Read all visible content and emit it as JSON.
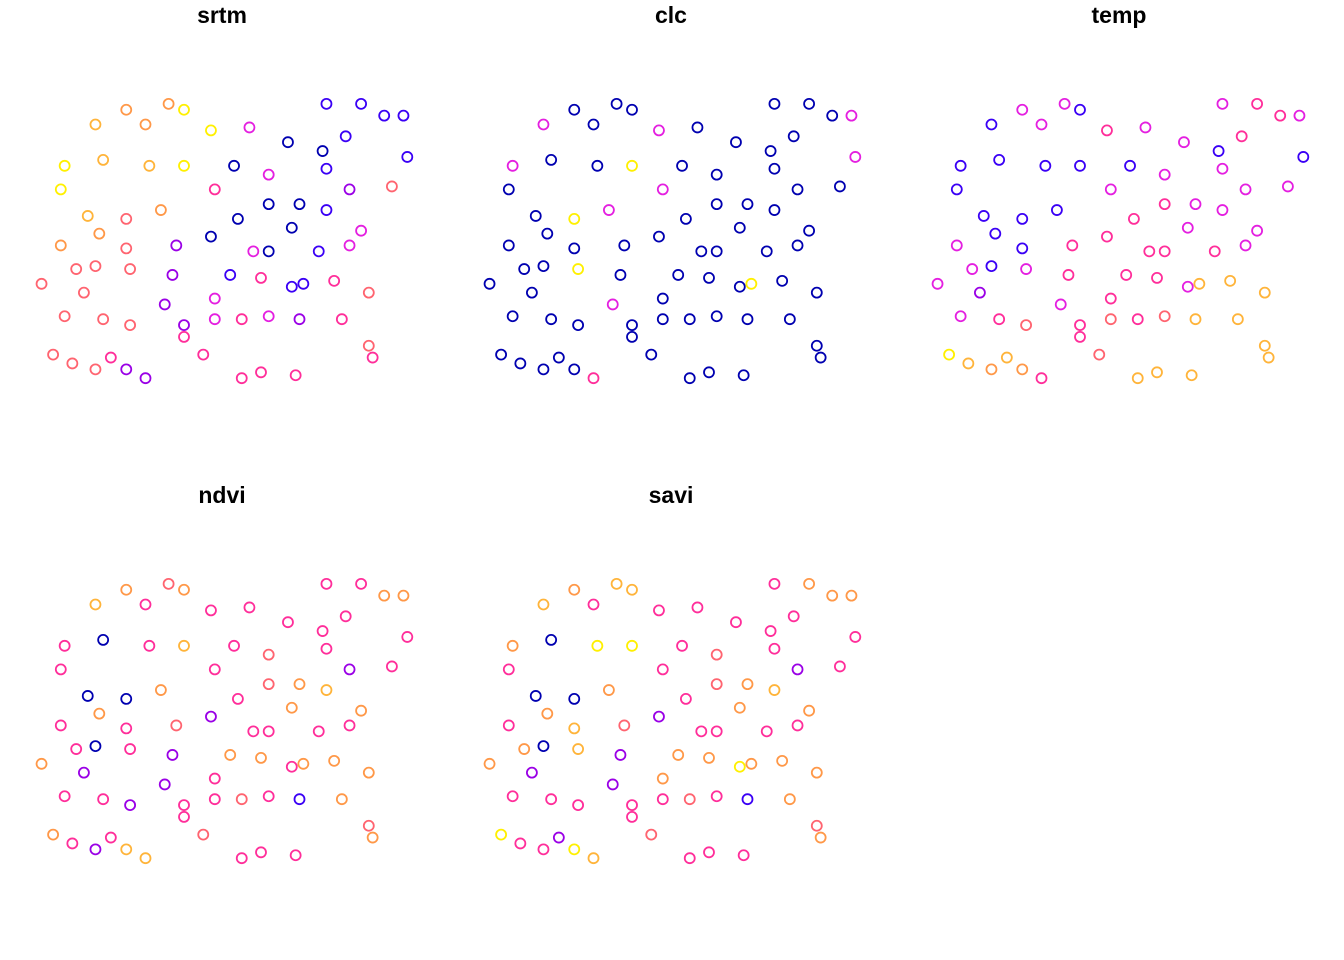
{
  "chart_data": [
    {
      "type": "scatter",
      "title": "srtm",
      "xlim": [
        0,
        100
      ],
      "ylim": [
        0,
        100
      ],
      "x": [
        17,
        25,
        36,
        47,
        57,
        67,
        77,
        86,
        97,
        98,
        9,
        19,
        31,
        40,
        53,
        62,
        76,
        83,
        94,
        8,
        15,
        25,
        34,
        48,
        54,
        62,
        70,
        77,
        86,
        8,
        18,
        25,
        38,
        47,
        58,
        68,
        75,
        83,
        3,
        12,
        17,
        26,
        37,
        48,
        52,
        60,
        68,
        71,
        79,
        88,
        9,
        14,
        19,
        26,
        35,
        48,
        55,
        62,
        70,
        81,
        40,
        6,
        11,
        17,
        21,
        25,
        30,
        40,
        45,
        55,
        60,
        69,
        88,
        89,
        30,
        40,
        82,
        92,
        77,
        62
      ],
      "y": [
        90,
        95,
        97,
        88,
        89,
        84,
        97,
        97,
        93,
        79,
        76,
        78,
        76,
        76,
        76,
        73,
        81,
        68,
        69,
        68,
        59,
        58,
        61,
        68,
        58,
        63,
        63,
        61,
        54,
        49,
        53,
        48,
        49,
        52,
        47,
        55,
        47,
        49,
        36,
        41,
        42,
        41,
        39,
        31,
        39,
        38,
        35,
        36,
        37,
        33,
        25,
        33,
        24,
        22,
        29,
        24,
        24,
        25,
        24,
        24,
        22,
        12,
        9,
        7,
        11,
        7,
        4,
        18,
        12,
        4,
        6,
        5,
        15,
        11,
        90,
        95,
        86,
        93,
        75,
        47
      ],
      "colors": [
        "#FFB43A",
        "#FF9848",
        "#FF9848",
        "#FFF000",
        "#E41FE0",
        "#0000B0",
        "#3A00F5",
        "#3A00F5",
        "#3A00F5",
        "#3A00F5",
        "#FFF000",
        "#FFB43A",
        "#FFB43A",
        "#FFF000",
        "#0000B0",
        "#E41FE0",
        "#0000B0",
        "#9A00E6",
        "#FF6470",
        "#FFF000",
        "#FFB43A",
        "#FF6470",
        "#FF9848",
        "#FF2E9A",
        "#0000B0",
        "#0000B0",
        "#0000B0",
        "#3A00F5",
        "#E41FE0",
        "#FF9848",
        "#FF9848",
        "#FF6470",
        "#9A00E6",
        "#0000B0",
        "#E41FE0",
        "#0000B0",
        "#3A00F5",
        "#E41FE0",
        "#FF6470",
        "#FF6470",
        "#FF6470",
        "#FF6470",
        "#9A00E6",
        "#E41FE0",
        "#3A00F5",
        "#FF2E9A",
        "#3A00F5",
        "#3A00F5",
        "#FF2E9A",
        "#FF6470",
        "#FF6470",
        "#FF6470",
        "#FF6470",
        "#FF6470",
        "#9A00E6",
        "#E41FE0",
        "#FF2E9A",
        "#E41FE0",
        "#9A00E6",
        "#FF2E9A",
        "#9A00E6",
        "#FF6470",
        "#FF6470",
        "#FF6470",
        "#FF2E9A",
        "#9A00E6",
        "#9A00E6",
        "#FF2E9A",
        "#FF2E9A",
        "#FF2E9A",
        "#FF2E9A",
        "#FF2E9A",
        "#FF6470",
        "#FF2E9A",
        "#FF9848",
        "#FFF000",
        "#3A00F5",
        "#3A00F5",
        "#3A00F5",
        "#0000B0"
      ]
    },
    {
      "type": "scatter",
      "title": "clc",
      "xlim": [
        0,
        100
      ],
      "ylim": [
        0,
        100
      ],
      "x": [
        17,
        25,
        36,
        47,
        57,
        67,
        77,
        86,
        97,
        98,
        9,
        19,
        31,
        40,
        53,
        62,
        76,
        83,
        94,
        8,
        15,
        25,
        34,
        48,
        54,
        62,
        70,
        77,
        86,
        8,
        18,
        25,
        38,
        47,
        58,
        68,
        75,
        83,
        3,
        12,
        17,
        26,
        37,
        48,
        52,
        60,
        68,
        71,
        79,
        88,
        9,
        14,
        19,
        26,
        35,
        48,
        55,
        62,
        70,
        81,
        40,
        6,
        11,
        17,
        21,
        25,
        30,
        40,
        45,
        55,
        60,
        69,
        88,
        89,
        30,
        40,
        82,
        92,
        77,
        62
      ],
      "y": [
        90,
        95,
        97,
        88,
        89,
        84,
        97,
        97,
        93,
        79,
        76,
        78,
        76,
        76,
        76,
        73,
        81,
        68,
        69,
        68,
        59,
        58,
        61,
        68,
        58,
        63,
        63,
        61,
        54,
        49,
        53,
        48,
        49,
        52,
        47,
        55,
        47,
        49,
        36,
        41,
        42,
        41,
        39,
        31,
        39,
        38,
        35,
        36,
        37,
        33,
        25,
        33,
        24,
        22,
        29,
        24,
        24,
        25,
        24,
        24,
        22,
        12,
        9,
        7,
        11,
        7,
        4,
        18,
        12,
        4,
        6,
        5,
        15,
        11,
        90,
        95,
        86,
        93,
        75,
        47
      ],
      "colors": [
        "#E41FE0",
        "#0000B0",
        "#0000B0",
        "#E41FE0",
        "#0000B0",
        "#0000B0",
        "#0000B0",
        "#0000B0",
        "#E41FE0",
        "#E41FE0",
        "#E41FE0",
        "#0000B0",
        "#0000B0",
        "#FFF000",
        "#0000B0",
        "#0000B0",
        "#0000B0",
        "#0000B0",
        "#0000B0",
        "#0000B0",
        "#0000B0",
        "#FFF000",
        "#E41FE0",
        "#E41FE0",
        "#0000B0",
        "#0000B0",
        "#0000B0",
        "#0000B0",
        "#0000B0",
        "#0000B0",
        "#0000B0",
        "#0000B0",
        "#0000B0",
        "#0000B0",
        "#0000B0",
        "#0000B0",
        "#0000B0",
        "#0000B0",
        "#0000B0",
        "#0000B0",
        "#0000B0",
        "#FFF000",
        "#0000B0",
        "#0000B0",
        "#0000B0",
        "#0000B0",
        "#0000B0",
        "#FFF000",
        "#0000B0",
        "#0000B0",
        "#0000B0",
        "#0000B0",
        "#0000B0",
        "#0000B0",
        "#E41FE0",
        "#0000B0",
        "#0000B0",
        "#0000B0",
        "#0000B0",
        "#0000B0",
        "#0000B0",
        "#0000B0",
        "#0000B0",
        "#0000B0",
        "#0000B0",
        "#0000B0",
        "#FF2E9A",
        "#0000B0",
        "#0000B0",
        "#0000B0",
        "#0000B0",
        "#0000B0",
        "#0000B0",
        "#0000B0",
        "#0000B0",
        "#0000B0",
        "#0000B0",
        "#0000B0",
        "#0000B0",
        "#0000B0"
      ]
    },
    {
      "type": "scatter",
      "title": "temp",
      "xlim": [
        0,
        100
      ],
      "ylim": [
        0,
        100
      ],
      "x": [
        17,
        25,
        36,
        47,
        57,
        67,
        77,
        86,
        97,
        98,
        9,
        19,
        31,
        40,
        53,
        62,
        76,
        83,
        94,
        8,
        15,
        25,
        34,
        48,
        54,
        62,
        70,
        77,
        86,
        8,
        18,
        25,
        38,
        47,
        58,
        68,
        75,
        83,
        3,
        12,
        17,
        26,
        37,
        48,
        52,
        60,
        68,
        71,
        79,
        88,
        9,
        14,
        19,
        26,
        35,
        48,
        55,
        62,
        70,
        81,
        40,
        6,
        11,
        17,
        21,
        25,
        30,
        40,
        45,
        55,
        60,
        69,
        88,
        89,
        30,
        40,
        82,
        92,
        77,
        62
      ],
      "y": [
        90,
        95,
        97,
        88,
        89,
        84,
        97,
        97,
        93,
        79,
        76,
        78,
        76,
        76,
        76,
        73,
        81,
        68,
        69,
        68,
        59,
        58,
        61,
        68,
        58,
        63,
        63,
        61,
        54,
        49,
        53,
        48,
        49,
        52,
        47,
        55,
        47,
        49,
        36,
        41,
        42,
        41,
        39,
        31,
        39,
        38,
        35,
        36,
        37,
        33,
        25,
        33,
        24,
        22,
        29,
        24,
        24,
        25,
        24,
        24,
        22,
        12,
        9,
        7,
        11,
        7,
        4,
        18,
        12,
        4,
        6,
        5,
        15,
        11,
        90,
        95,
        86,
        93,
        75,
        47
      ],
      "colors": [
        "#3A00F5",
        "#E41FE0",
        "#E41FE0",
        "#FF2E9A",
        "#E41FE0",
        "#E41FE0",
        "#E41FE0",
        "#FF2E9A",
        "#E41FE0",
        "#3A00F5",
        "#3A00F5",
        "#3A00F5",
        "#3A00F5",
        "#3A00F5",
        "#3A00F5",
        "#E41FE0",
        "#3A00F5",
        "#E41FE0",
        "#E41FE0",
        "#3A00F5",
        "#3A00F5",
        "#3A00F5",
        "#3A00F5",
        "#E41FE0",
        "#FF2E9A",
        "#FF2E9A",
        "#E41FE0",
        "#E41FE0",
        "#E41FE0",
        "#E41FE0",
        "#3A00F5",
        "#3A00F5",
        "#FF2E9A",
        "#FF2E9A",
        "#FF2E9A",
        "#E41FE0",
        "#FF2E9A",
        "#E41FE0",
        "#E41FE0",
        "#E41FE0",
        "#3A00F5",
        "#E41FE0",
        "#FF2E9A",
        "#FF2E9A",
        "#FF2E9A",
        "#FF2E9A",
        "#E41FE0",
        "#FFB43A",
        "#FFB43A",
        "#FFB43A",
        "#E41FE0",
        "#9A00E6",
        "#FF2E9A",
        "#FF6470",
        "#E41FE0",
        "#FF6470",
        "#FF2E9A",
        "#FF6470",
        "#FFB43A",
        "#FFB43A",
        "#FF2E9A",
        "#FFF000",
        "#FFB43A",
        "#FF9848",
        "#FFB43A",
        "#FF9848",
        "#FF2E9A",
        "#FF2E9A",
        "#FF6470",
        "#FFB43A",
        "#FFB43A",
        "#FFB43A",
        "#FFB43A",
        "#FFB43A",
        "#E41FE0",
        "#3A00F5",
        "#FF2E9A",
        "#FF2E9A",
        "#E41FE0",
        "#FF2E9A"
      ]
    },
    {
      "type": "scatter",
      "title": "ndvi",
      "xlim": [
        0,
        100
      ],
      "ylim": [
        0,
        100
      ],
      "x": [
        17,
        25,
        36,
        47,
        57,
        67,
        77,
        86,
        97,
        98,
        9,
        19,
        31,
        40,
        53,
        62,
        76,
        83,
        94,
        8,
        15,
        25,
        34,
        48,
        54,
        62,
        70,
        77,
        86,
        8,
        18,
        25,
        38,
        47,
        58,
        68,
        75,
        83,
        3,
        12,
        17,
        26,
        37,
        48,
        52,
        60,
        68,
        71,
        79,
        88,
        9,
        14,
        19,
        26,
        35,
        48,
        55,
        62,
        70,
        81,
        40,
        6,
        11,
        17,
        21,
        25,
        30,
        40,
        45,
        55,
        60,
        69,
        88,
        89,
        30,
        40,
        82,
        92,
        77,
        62
      ],
      "y": [
        90,
        95,
        97,
        88,
        89,
        84,
        97,
        97,
        93,
        79,
        76,
        78,
        76,
        76,
        76,
        73,
        81,
        68,
        69,
        68,
        59,
        58,
        61,
        68,
        58,
        63,
        63,
        61,
        54,
        49,
        53,
        48,
        49,
        52,
        47,
        55,
        47,
        49,
        36,
        41,
        42,
        41,
        39,
        31,
        39,
        38,
        35,
        36,
        37,
        33,
        25,
        33,
        24,
        22,
        29,
        24,
        24,
        25,
        24,
        24,
        22,
        12,
        9,
        7,
        11,
        7,
        4,
        18,
        12,
        4,
        6,
        5,
        15,
        11,
        90,
        95,
        86,
        93,
        75,
        47
      ],
      "colors": [
        "#FFB43A",
        "#FF9848",
        "#FF6470",
        "#FF2E9A",
        "#FF2E9A",
        "#FF2E9A",
        "#FF2E9A",
        "#FF2E9A",
        "#FF9848",
        "#FF2E9A",
        "#FF2E9A",
        "#0000B0",
        "#FF2E9A",
        "#FFB43A",
        "#FF2E9A",
        "#FF6470",
        "#FF2E9A",
        "#9A00E6",
        "#FF2E9A",
        "#FF2E9A",
        "#0000B0",
        "#0000B0",
        "#FF9848",
        "#FF2E9A",
        "#FF2E9A",
        "#FF6470",
        "#FF9848",
        "#FFB43A",
        "#FF9848",
        "#FF2E9A",
        "#FF9848",
        "#FF2E9A",
        "#FF6470",
        "#9A00E6",
        "#FF2E9A",
        "#FF9848",
        "#FF2E9A",
        "#FF2E9A",
        "#FF9848",
        "#FF2E9A",
        "#0000B0",
        "#FF2E9A",
        "#9A00E6",
        "#FF2E9A",
        "#FF9848",
        "#FF9848",
        "#FF2E9A",
        "#FF9848",
        "#FF9848",
        "#FF9848",
        "#FF2E9A",
        "#9A00E6",
        "#FF2E9A",
        "#9A00E6",
        "#9A00E6",
        "#FF2E9A",
        "#FF6470",
        "#FF2E9A",
        "#3A00F5",
        "#FF9848",
        "#FF2E9A",
        "#FF9848",
        "#FF2E9A",
        "#9A00E6",
        "#FF2E9A",
        "#FFB43A",
        "#FFB43A",
        "#FF2E9A",
        "#FF6470",
        "#FF2E9A",
        "#FF2E9A",
        "#FF2E9A",
        "#FF6470",
        "#FF9848",
        "#FF2E9A",
        "#FF9848",
        "#FF2E9A",
        "#FF9848",
        "#FF2E9A",
        "#FF2E9A"
      ]
    },
    {
      "type": "scatter",
      "title": "savi",
      "xlim": [
        0,
        100
      ],
      "ylim": [
        0,
        100
      ],
      "x": [
        17,
        25,
        36,
        47,
        57,
        67,
        77,
        86,
        97,
        98,
        9,
        19,
        31,
        40,
        53,
        62,
        76,
        83,
        94,
        8,
        15,
        25,
        34,
        48,
        54,
        62,
        70,
        77,
        86,
        8,
        18,
        25,
        38,
        47,
        58,
        68,
        75,
        83,
        3,
        12,
        17,
        26,
        37,
        48,
        52,
        60,
        68,
        71,
        79,
        88,
        9,
        14,
        19,
        26,
        35,
        48,
        55,
        62,
        70,
        81,
        40,
        6,
        11,
        17,
        21,
        25,
        30,
        40,
        45,
        55,
        60,
        69,
        88,
        89,
        30,
        40,
        82,
        92,
        77,
        62
      ],
      "y": [
        90,
        95,
        97,
        88,
        89,
        84,
        97,
        97,
        93,
        79,
        76,
        78,
        76,
        76,
        76,
        73,
        81,
        68,
        69,
        68,
        59,
        58,
        61,
        68,
        58,
        63,
        63,
        61,
        54,
        49,
        53,
        48,
        49,
        52,
        47,
        55,
        47,
        49,
        36,
        41,
        42,
        41,
        39,
        31,
        39,
        38,
        35,
        36,
        37,
        33,
        25,
        33,
        24,
        22,
        29,
        24,
        24,
        25,
        24,
        24,
        22,
        12,
        9,
        7,
        11,
        7,
        4,
        18,
        12,
        4,
        6,
        5,
        15,
        11,
        90,
        95,
        86,
        93,
        75,
        47
      ],
      "colors": [
        "#FFB43A",
        "#FF9848",
        "#FFB43A",
        "#FF2E9A",
        "#FF2E9A",
        "#FF2E9A",
        "#FF2E9A",
        "#FF9848",
        "#FF9848",
        "#FF2E9A",
        "#FF9848",
        "#0000B0",
        "#FFF000",
        "#FFF000",
        "#FF2E9A",
        "#FF6470",
        "#FF2E9A",
        "#9A00E6",
        "#FF2E9A",
        "#FF2E9A",
        "#0000B0",
        "#0000B0",
        "#FF9848",
        "#FF2E9A",
        "#FF2E9A",
        "#FF6470",
        "#FF9848",
        "#FFB43A",
        "#FF9848",
        "#FF2E9A",
        "#FF9848",
        "#FFB43A",
        "#FF6470",
        "#9A00E6",
        "#FF2E9A",
        "#FF9848",
        "#FF2E9A",
        "#FF2E9A",
        "#FF9848",
        "#FF9848",
        "#0000B0",
        "#FFB43A",
        "#9A00E6",
        "#FF9848",
        "#FF9848",
        "#FF9848",
        "#FFF000",
        "#FF9848",
        "#FF9848",
        "#FF9848",
        "#FF2E9A",
        "#9A00E6",
        "#FF2E9A",
        "#FF2E9A",
        "#9A00E6",
        "#FF2E9A",
        "#FF6470",
        "#FF2E9A",
        "#3A00F5",
        "#FF9848",
        "#FF2E9A",
        "#FFF000",
        "#FF2E9A",
        "#FF2E9A",
        "#9A00E6",
        "#FFF000",
        "#FFB43A",
        "#FF2E9A",
        "#FF6470",
        "#FF2E9A",
        "#FF2E9A",
        "#FF2E9A",
        "#FF6470",
        "#FF9848",
        "#FF2E9A",
        "#FFB43A",
        "#FF2E9A",
        "#FF9848",
        "#FF2E9A",
        "#FF2E9A"
      ]
    }
  ]
}
